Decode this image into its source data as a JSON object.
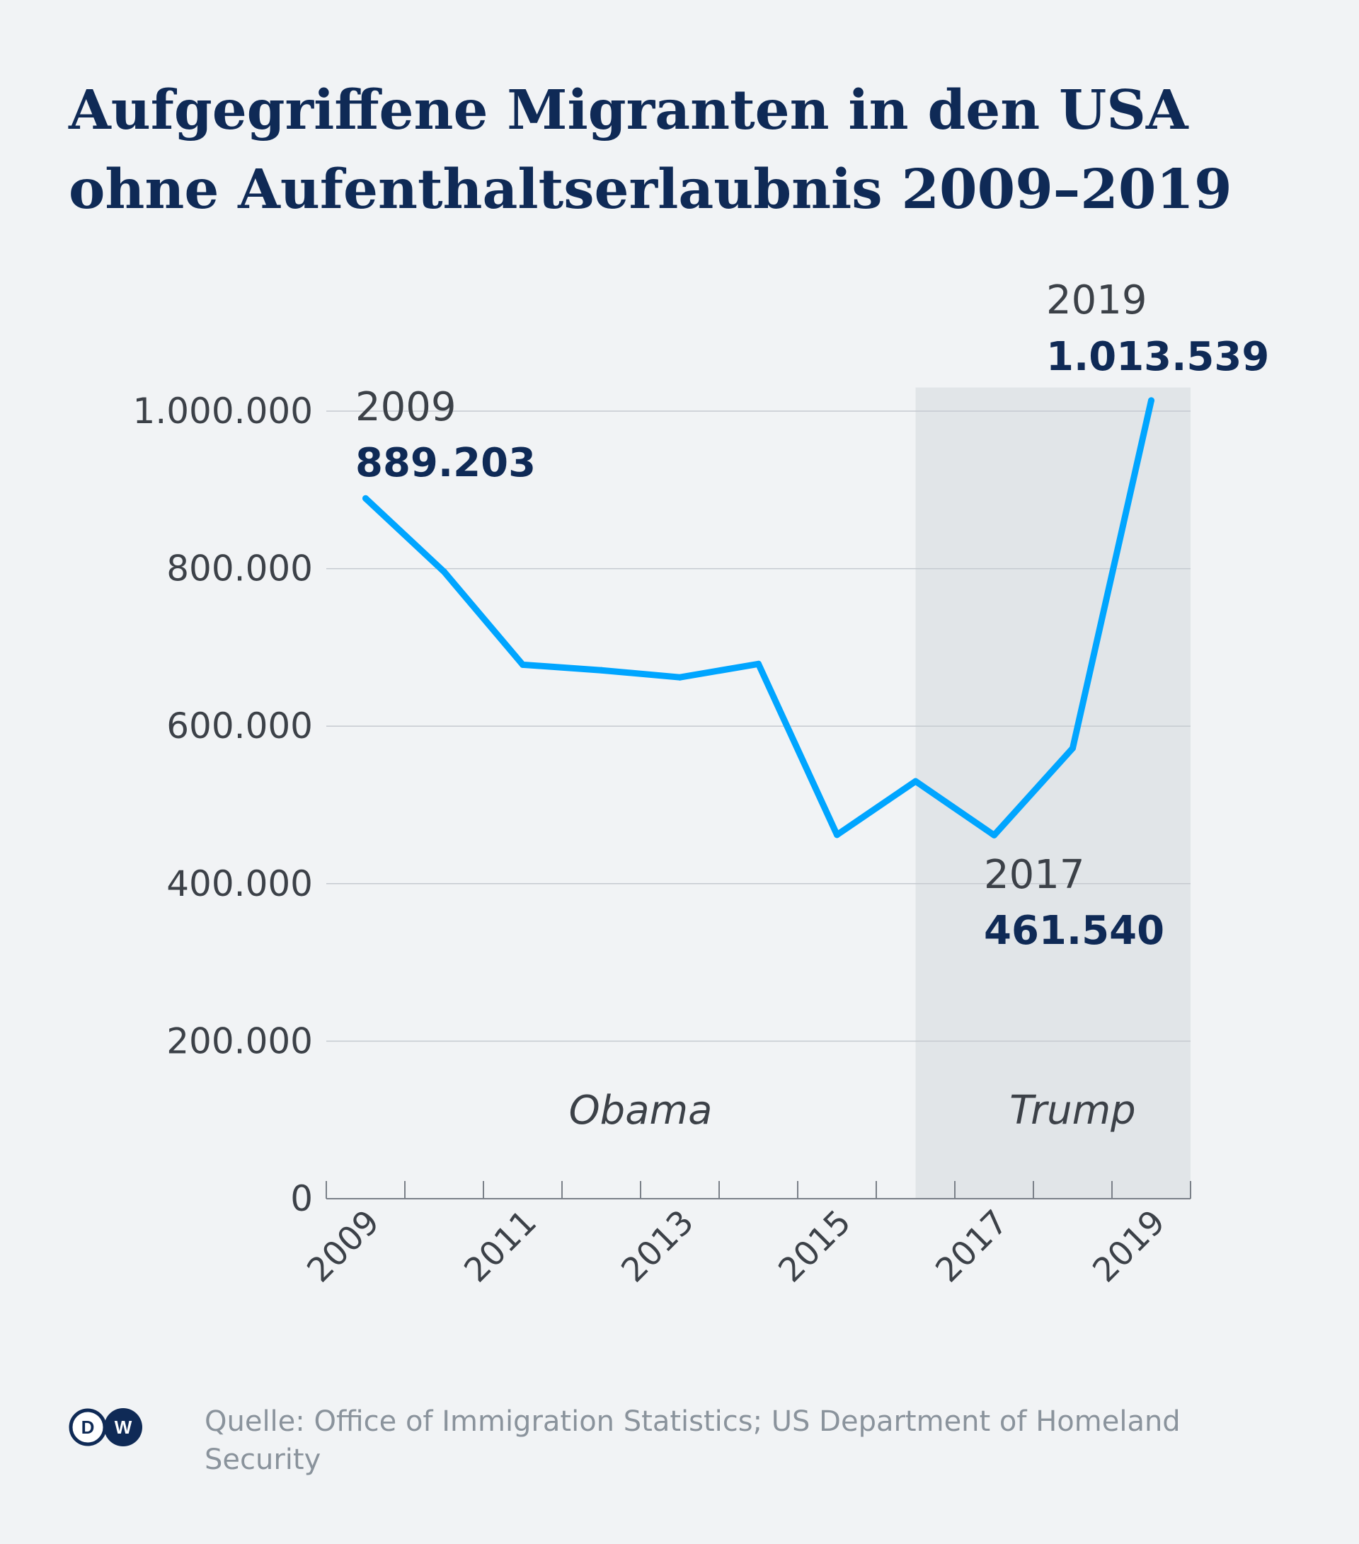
{
  "title": {
    "line1": "Aufgegriffene Migranten in den USA",
    "line2": "ohne Aufenthaltserlaubnis 2009–2019"
  },
  "footer": {
    "source": "Quelle: Office of Immigration Statistics; US Department of Homeland Security",
    "logo_text": "DW"
  },
  "chart_data": {
    "type": "line",
    "x": [
      2009,
      2010,
      2011,
      2012,
      2013,
      2014,
      2015,
      2016,
      2017,
      2018,
      2019
    ],
    "series": [
      {
        "values": [
          889203,
          796000,
          678000,
          671000,
          662000,
          679000,
          462000,
          530000,
          461540,
          572000,
          1013539
        ]
      }
    ],
    "xlim": [
      2009,
      2020
    ],
    "ylim": [
      0,
      1000000
    ],
    "ylim_max_plot": 1030000,
    "yticks": [
      0,
      200000,
      400000,
      600000,
      800000,
      1000000
    ],
    "ytick_labels": [
      "0",
      "200.000",
      "400.000",
      "600.000",
      "800.000",
      "1.000.000"
    ],
    "xticks_labeled": [
      2009,
      2011,
      2013,
      2015,
      2017,
      2019
    ],
    "xtick_labels": [
      "2009",
      "2011",
      "2013",
      "2015",
      "2017",
      "2019"
    ],
    "grid": true,
    "line_color": "#00a5ff",
    "shaded_period": {
      "from": 2016.5,
      "to": 2019.5,
      "color": "#e1e5e8"
    },
    "period_labels": [
      {
        "text": "Obama",
        "at": 2012.5
      },
      {
        "text": "Trump",
        "at": 2018.0
      }
    ],
    "annotations": [
      {
        "year_label": "2009",
        "value_label": "889.203",
        "x": 2009,
        "y": 889203
      },
      {
        "year_label": "2017",
        "value_label": "461.540",
        "x": 2017,
        "y": 461540
      },
      {
        "year_label": "2019",
        "value_label": "1.013.539",
        "x": 2019,
        "y": 1013539
      }
    ],
    "colors": {
      "title": "#0f2a56",
      "value_label": "#0f2a56",
      "text": "#3c4148",
      "grid": "#c5cad0",
      "axis": "#7a8088",
      "background": "#f1f3f5"
    }
  }
}
